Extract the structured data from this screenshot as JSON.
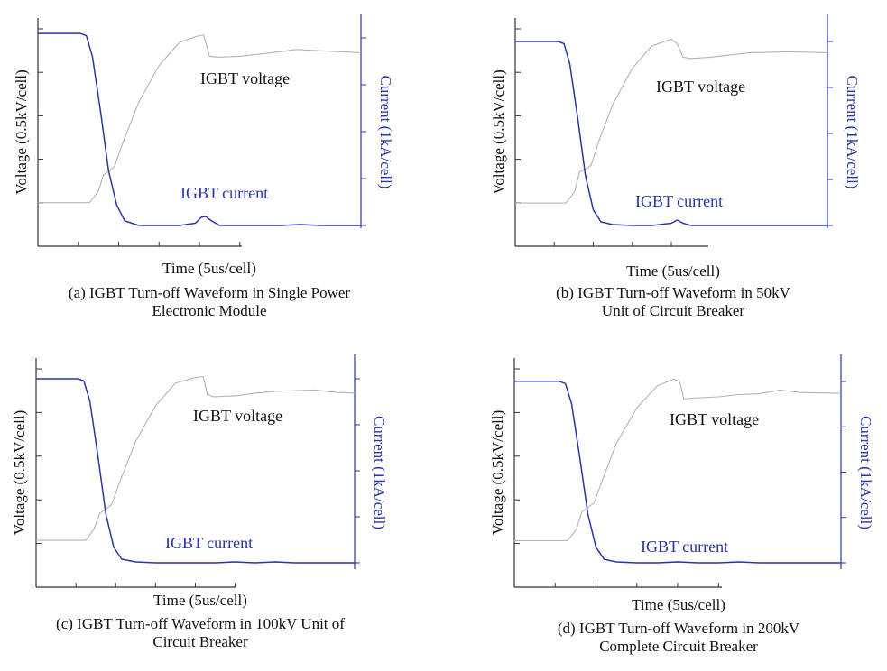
{
  "colors": {
    "voltage": "#b3b3b3",
    "current": "#2a35a8",
    "axis": "#333333",
    "text": "#111111"
  },
  "chart_data": [
    {
      "type": "line",
      "caption": [
        "(a) IGBT Turn-off Waveform in Single Power",
        "Electronic Module"
      ],
      "xlabel": "Time (5us/cell)",
      "ylabel": "Voltage (0.5kV/cell)",
      "y2label": "Current (1kA/cell)",
      "xlim": [
        0,
        8
      ],
      "ylim": [
        0,
        4.5
      ],
      "y2lim": [
        0,
        4.5
      ],
      "grid": false,
      "annotations": [
        "IGBT voltage",
        "IGBT current"
      ],
      "series": [
        {
          "name": "IGBT voltage",
          "axis": "left",
          "x": [
            0,
            1.28,
            1.5,
            1.62,
            1.78,
            1.9,
            2.1,
            2.5,
            3.0,
            3.5,
            3.9,
            4.1,
            4.25,
            4.5,
            5.0,
            5.5,
            6.0,
            6.4,
            7.0,
            7.5,
            8.0
          ],
          "y": [
            0.5,
            0.5,
            0.75,
            1.1,
            1.2,
            1.3,
            1.8,
            2.7,
            3.5,
            4.0,
            4.13,
            4.17,
            3.7,
            3.68,
            3.7,
            3.75,
            3.8,
            3.85,
            3.82,
            3.8,
            3.78
          ]
        },
        {
          "name": "IGBT current",
          "axis": "right",
          "x": [
            0,
            1.05,
            1.2,
            1.35,
            1.55,
            1.75,
            1.95,
            2.15,
            2.5,
            3.0,
            3.5,
            3.9,
            4.05,
            4.15,
            4.3,
            4.5,
            5.0,
            5.5,
            6.0,
            6.5,
            7.0,
            7.5,
            8.0
          ],
          "y": [
            4.2,
            4.2,
            4.15,
            3.7,
            2.5,
            1.2,
            0.45,
            0.1,
            0.0,
            0.0,
            0.0,
            0.05,
            0.18,
            0.2,
            0.1,
            0.0,
            0.0,
            0.0,
            0.0,
            0.02,
            0.0,
            0.0,
            0.0
          ]
        }
      ]
    },
    {
      "type": "line",
      "caption": [
        "(b) IGBT Turn-off Waveform in 50kV",
        "Unit of Circuit Breaker"
      ],
      "xlabel": "Time (5us/cell)",
      "ylabel": "Voltage (0.5kV/cell)",
      "y2label": "Current (1kA/cell)",
      "xlim": [
        0,
        8
      ],
      "ylim": [
        0,
        4.5
      ],
      "y2lim": [
        0,
        4.5
      ],
      "grid": false,
      "annotations": [
        "IGBT voltage",
        "IGBT current"
      ],
      "series": [
        {
          "name": "IGBT voltage",
          "axis": "left",
          "x": [
            0,
            1.3,
            1.52,
            1.65,
            1.8,
            1.95,
            2.15,
            2.5,
            3.0,
            3.5,
            4.0,
            4.15,
            4.3,
            4.5,
            5.0,
            5.5,
            6.0,
            7.0,
            8.0
          ],
          "y": [
            0.5,
            0.5,
            0.75,
            1.2,
            1.25,
            1.35,
            1.9,
            2.7,
            3.5,
            4.0,
            4.15,
            4.05,
            3.75,
            3.72,
            3.75,
            3.8,
            3.85,
            3.87,
            3.85
          ]
        },
        {
          "name": "IGBT current",
          "axis": "right",
          "x": [
            0,
            1.1,
            1.25,
            1.4,
            1.6,
            1.8,
            2.0,
            2.2,
            2.5,
            3.0,
            3.5,
            4.0,
            4.15,
            4.3,
            4.5,
            5.0,
            6.0,
            7.0,
            8.0
          ],
          "y": [
            4.1,
            4.1,
            4.05,
            3.6,
            2.4,
            1.1,
            0.35,
            0.08,
            0.02,
            0.0,
            0.0,
            0.05,
            0.12,
            0.05,
            0.0,
            0.0,
            0.0,
            0.0,
            0.0
          ]
        }
      ]
    },
    {
      "type": "line",
      "caption": [
        "(c) IGBT Turn-off Waveform in 100kV Unit of",
        "Circuit Breaker"
      ],
      "xlabel": "Time (5us/cell)",
      "ylabel": "Voltage (0.5kV/cell)",
      "y2label": "Current (1kA/cell)",
      "xlim": [
        0,
        8
      ],
      "ylim": [
        0,
        4.5
      ],
      "y2lim": [
        0,
        4.5
      ],
      "grid": false,
      "annotations": [
        "IGBT voltage",
        "IGBT current"
      ],
      "series": [
        {
          "name": "IGBT voltage",
          "axis": "left",
          "x": [
            0,
            1.25,
            1.45,
            1.6,
            1.75,
            1.9,
            2.1,
            2.5,
            3.0,
            3.5,
            4.0,
            4.2,
            4.3,
            4.45,
            5.0,
            5.5,
            6.0,
            7.0,
            7.5,
            8.0
          ],
          "y": [
            0.5,
            0.5,
            0.75,
            1.1,
            1.2,
            1.3,
            1.8,
            2.7,
            3.5,
            4.0,
            4.13,
            4.15,
            3.75,
            3.7,
            3.72,
            3.78,
            3.82,
            3.85,
            3.8,
            3.78
          ]
        },
        {
          "name": "IGBT current",
          "axis": "right",
          "x": [
            0,
            1.05,
            1.2,
            1.35,
            1.55,
            1.75,
            1.95,
            2.15,
            2.5,
            3.0,
            3.5,
            4.0,
            4.5,
            5.0,
            5.5,
            6.0,
            6.5,
            7.0,
            7.5,
            8.0
          ],
          "y": [
            4.1,
            4.1,
            4.05,
            3.6,
            2.4,
            1.1,
            0.35,
            0.08,
            0.02,
            0.0,
            0.0,
            0.0,
            0.0,
            0.02,
            0.0,
            0.02,
            0.0,
            0.0,
            0.0,
            0.0
          ]
        }
      ]
    },
    {
      "type": "line",
      "caption": [
        "(d) IGBT Turn-off Waveform in 200kV",
        "Complete Circuit Breaker"
      ],
      "xlabel": "Time (5us/cell)",
      "ylabel": "Voltage (0.5kV/cell)",
      "y2label": "Current (1kA/cell)",
      "xlim": [
        0,
        8
      ],
      "ylim": [
        0,
        4.5
      ],
      "y2lim": [
        0,
        4.5
      ],
      "grid": false,
      "annotations": [
        "IGBT voltage",
        "IGBT current"
      ],
      "series": [
        {
          "name": "IGBT voltage",
          "axis": "left",
          "x": [
            0,
            1.3,
            1.52,
            1.65,
            1.8,
            1.95,
            2.15,
            2.5,
            3.0,
            3.5,
            3.9,
            4.05,
            4.15,
            4.35,
            5.0,
            5.5,
            6.0,
            6.5,
            7.0,
            8.0
          ],
          "y": [
            0.5,
            0.5,
            0.75,
            1.15,
            1.25,
            1.35,
            1.85,
            2.7,
            3.5,
            4.0,
            4.15,
            4.1,
            3.7,
            3.72,
            3.75,
            3.8,
            3.82,
            3.9,
            3.85,
            3.83
          ]
        },
        {
          "name": "IGBT current",
          "axis": "right",
          "x": [
            0,
            1.1,
            1.25,
            1.4,
            1.6,
            1.8,
            2.0,
            2.2,
            2.5,
            3.0,
            3.5,
            4.0,
            4.5,
            5.0,
            5.5,
            6.0,
            6.5,
            7.0,
            7.5,
            8.0
          ],
          "y": [
            4.1,
            4.1,
            4.05,
            3.6,
            2.4,
            1.1,
            0.35,
            0.08,
            0.02,
            0.0,
            0.0,
            0.02,
            0.0,
            0.0,
            0.02,
            0.0,
            0.0,
            0.0,
            0.0,
            0.0
          ]
        }
      ]
    }
  ]
}
